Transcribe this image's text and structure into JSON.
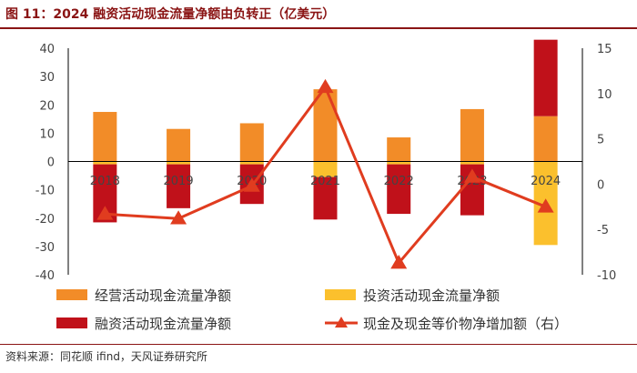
{
  "figure": {
    "title": "图 11：2024 融资活动现金流量净额由负转正（亿美元）",
    "source": "资料来源：同花顺 ifind，天风证券研究所"
  },
  "chart_data": {
    "type": "bar",
    "categories": [
      "2018",
      "2019",
      "2020",
      "2021",
      "2022",
      "2023",
      "2024"
    ],
    "y_left": {
      "range": [
        -40,
        40
      ],
      "ticks": [
        "40",
        "30",
        "20",
        "10",
        "0",
        "-10",
        "-20",
        "-30",
        "-40"
      ]
    },
    "y_right": {
      "range": [
        -10,
        15
      ],
      "ticks": [
        "15",
        "10",
        "5",
        "0",
        "-5",
        "-10"
      ]
    },
    "series": [
      {
        "name": "经营活动现金流量净额",
        "type": "bar",
        "axis": "left",
        "color": "#F28C28",
        "values": [
          17.5,
          11.5,
          13.5,
          25.5,
          8.5,
          18.5,
          16
        ]
      },
      {
        "name": "投资活动现金流量净额",
        "type": "bar",
        "axis": "left",
        "color": "#FBC02D",
        "values": [
          -1,
          -1,
          -1,
          -5.5,
          -1,
          -1,
          -29.5
        ]
      },
      {
        "name": "融资活动现金流量净额",
        "type": "bar",
        "axis": "left",
        "color": "#C0111A",
        "values": [
          -20.5,
          -15.5,
          -14,
          -15,
          -17.5,
          -18,
          27
        ]
      },
      {
        "name": "现金及现金等价物净增加额（右）",
        "type": "line",
        "axis": "right",
        "color": "#E03C1F",
        "values": [
          -3.3,
          -3.8,
          -0.2,
          10.7,
          -8.7,
          0.8,
          -2.5
        ]
      }
    ],
    "grid": false,
    "legend_position": "bottom"
  }
}
